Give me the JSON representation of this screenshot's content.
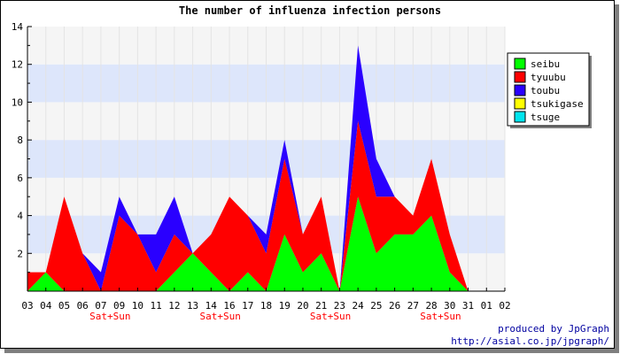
{
  "credits": {
    "line1": "produced by JpGraph",
    "line2": "http://asial.co.jp/jpgraph/"
  },
  "chart_data": {
    "type": "area",
    "stacked": true,
    "title": "The number of influenza infection persons",
    "xlabel": "",
    "ylabel": "",
    "ylim": [
      0,
      14
    ],
    "yticks": [
      2,
      4,
      6,
      8,
      10,
      12,
      14
    ],
    "grid": "alternating horizontal bands",
    "band_colors": [
      "#f5f5f5",
      "#dde6fb"
    ],
    "legend_position": "right",
    "categories": [
      "03",
      "04",
      "05",
      "06",
      "07",
      "09",
      "10",
      "11",
      "12",
      "13",
      "14",
      "16",
      "17",
      "18",
      "19",
      "20",
      "21",
      "23",
      "24",
      "25",
      "26",
      "27",
      "28",
      "30",
      "31",
      "01",
      "02"
    ],
    "weekend_markers": [
      {
        "after_index": 4,
        "label": "Sat+Sun"
      },
      {
        "after_index": 10,
        "label": "Sat+Sun"
      },
      {
        "after_index": 16,
        "label": "Sat+Sun"
      },
      {
        "after_index": 22,
        "label": "Sat+Sun"
      }
    ],
    "weekend_label_color": "#ff0000",
    "series": [
      {
        "name": "seibu",
        "color": "#00ff00",
        "values": [
          0,
          1,
          0,
          0,
          0,
          0,
          0,
          0,
          1,
          2,
          1,
          0,
          1,
          0,
          3,
          1,
          2,
          0,
          5,
          2,
          3,
          3,
          4,
          1,
          0,
          null,
          null
        ]
      },
      {
        "name": "tyuubu",
        "color": "#ff0000",
        "values": [
          1,
          0,
          5,
          2,
          0,
          4,
          3,
          1,
          2,
          0,
          2,
          5,
          3,
          2,
          4,
          2,
          3,
          0,
          4,
          3,
          2,
          1,
          3,
          2,
          0,
          null,
          null
        ]
      },
      {
        "name": "toubu",
        "color": "#2a00ff",
        "values": [
          0,
          0,
          0,
          0,
          1,
          1,
          0,
          2,
          2,
          0,
          0,
          0,
          0,
          1,
          1,
          0,
          0,
          0,
          4,
          2,
          0,
          0,
          0,
          0,
          0,
          null,
          null
        ]
      },
      {
        "name": "tsukigase",
        "color": "#ffff00",
        "values": [
          0,
          0,
          0,
          0,
          0,
          0,
          0,
          0,
          0,
          0,
          0,
          0,
          0,
          0,
          0,
          0,
          0,
          0,
          0,
          0,
          0,
          0,
          0,
          0,
          0,
          null,
          null
        ]
      },
      {
        "name": "tsuge",
        "color": "#00e5ee",
        "values": [
          0,
          0,
          0,
          0,
          0,
          0,
          0,
          0,
          0,
          0,
          0,
          0,
          0,
          0,
          0,
          0,
          0,
          0,
          0,
          0,
          0,
          0,
          0,
          0,
          0,
          null,
          null
        ]
      }
    ]
  }
}
